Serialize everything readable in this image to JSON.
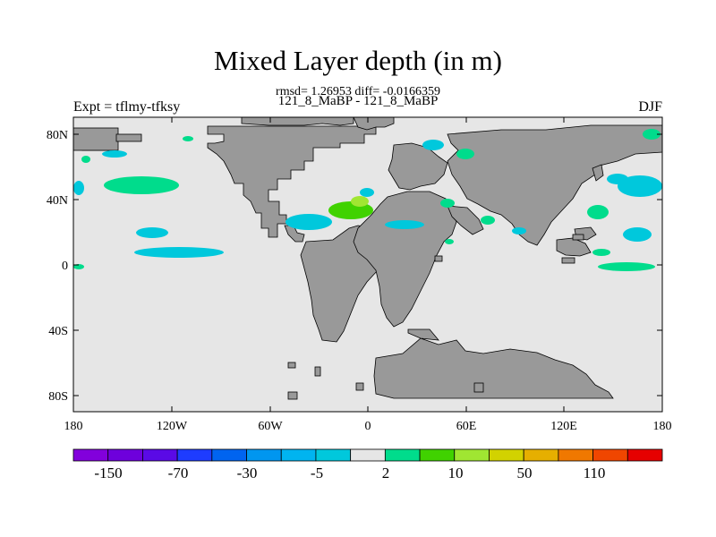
{
  "title": "Mixed Layer depth (in m)",
  "stats": "rmsd= 1.26953 diff= -0.0166359",
  "subtitle": "121_8_MaBP - 121_8_MaBP",
  "left_label": "Expt = tflmy-tfksy",
  "right_label": "DJF",
  "axes": {
    "x_ticks": [
      "180",
      "120W",
      "60W",
      "0",
      "60E",
      "120E",
      "180"
    ],
    "y_ticks": [
      "80N",
      "40N",
      "0",
      "40S",
      "80S"
    ]
  },
  "colors": {
    "land": "#999999",
    "ocean": "#e6e6e6",
    "neg_5": "#00c8dc",
    "pos_2": "#00dc8c",
    "pos_10": "#40d200",
    "pos_20": "#a0e632"
  },
  "colorbar": {
    "colors": [
      "#8200dc",
      "#6e00dc",
      "#5a0ae6",
      "#1e3cff",
      "#0064f0",
      "#0096f0",
      "#00b4f0",
      "#00c8dc",
      "#e6e6e6",
      "#00dc8c",
      "#40d200",
      "#a0e632",
      "#d2d200",
      "#e6af00",
      "#f07800",
      "#f04600",
      "#e60000"
    ],
    "labels": [
      "-150",
      "-70",
      "-30",
      "-5",
      "2",
      "10",
      "50",
      "110"
    ]
  }
}
